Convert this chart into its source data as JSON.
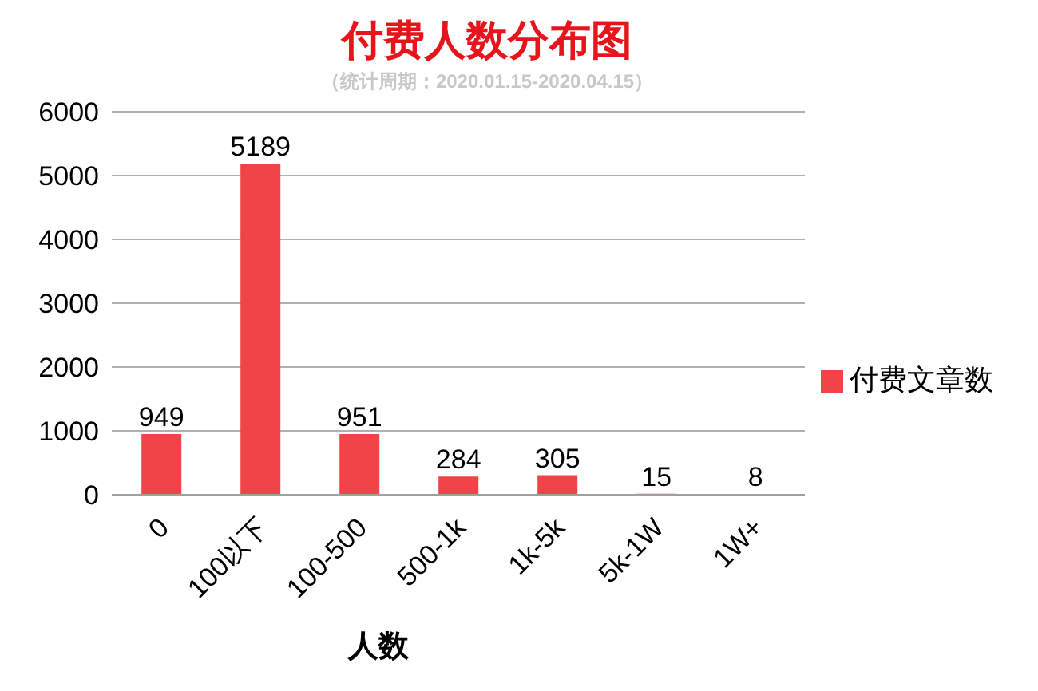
{
  "chart_data": {
    "type": "bar",
    "title": "付费人数分布图",
    "subtitle": "（统计周期：2020.01.15-2020.04.15）",
    "xlabel": "人数",
    "categories": [
      "0",
      "100以下",
      "100-500",
      "500-1k",
      "1k-5k",
      "5k-1W",
      "1W+"
    ],
    "series": [
      {
        "name": "付费文章数",
        "color": "#f04448",
        "values": [
          949,
          5189,
          951,
          284,
          305,
          15,
          8
        ]
      }
    ],
    "ylim": [
      0,
      6000
    ],
    "yticks": [
      0,
      1000,
      2000,
      3000,
      4000,
      5000,
      6000
    ],
    "grid": "y",
    "legend": "right",
    "data_labels": true
  }
}
